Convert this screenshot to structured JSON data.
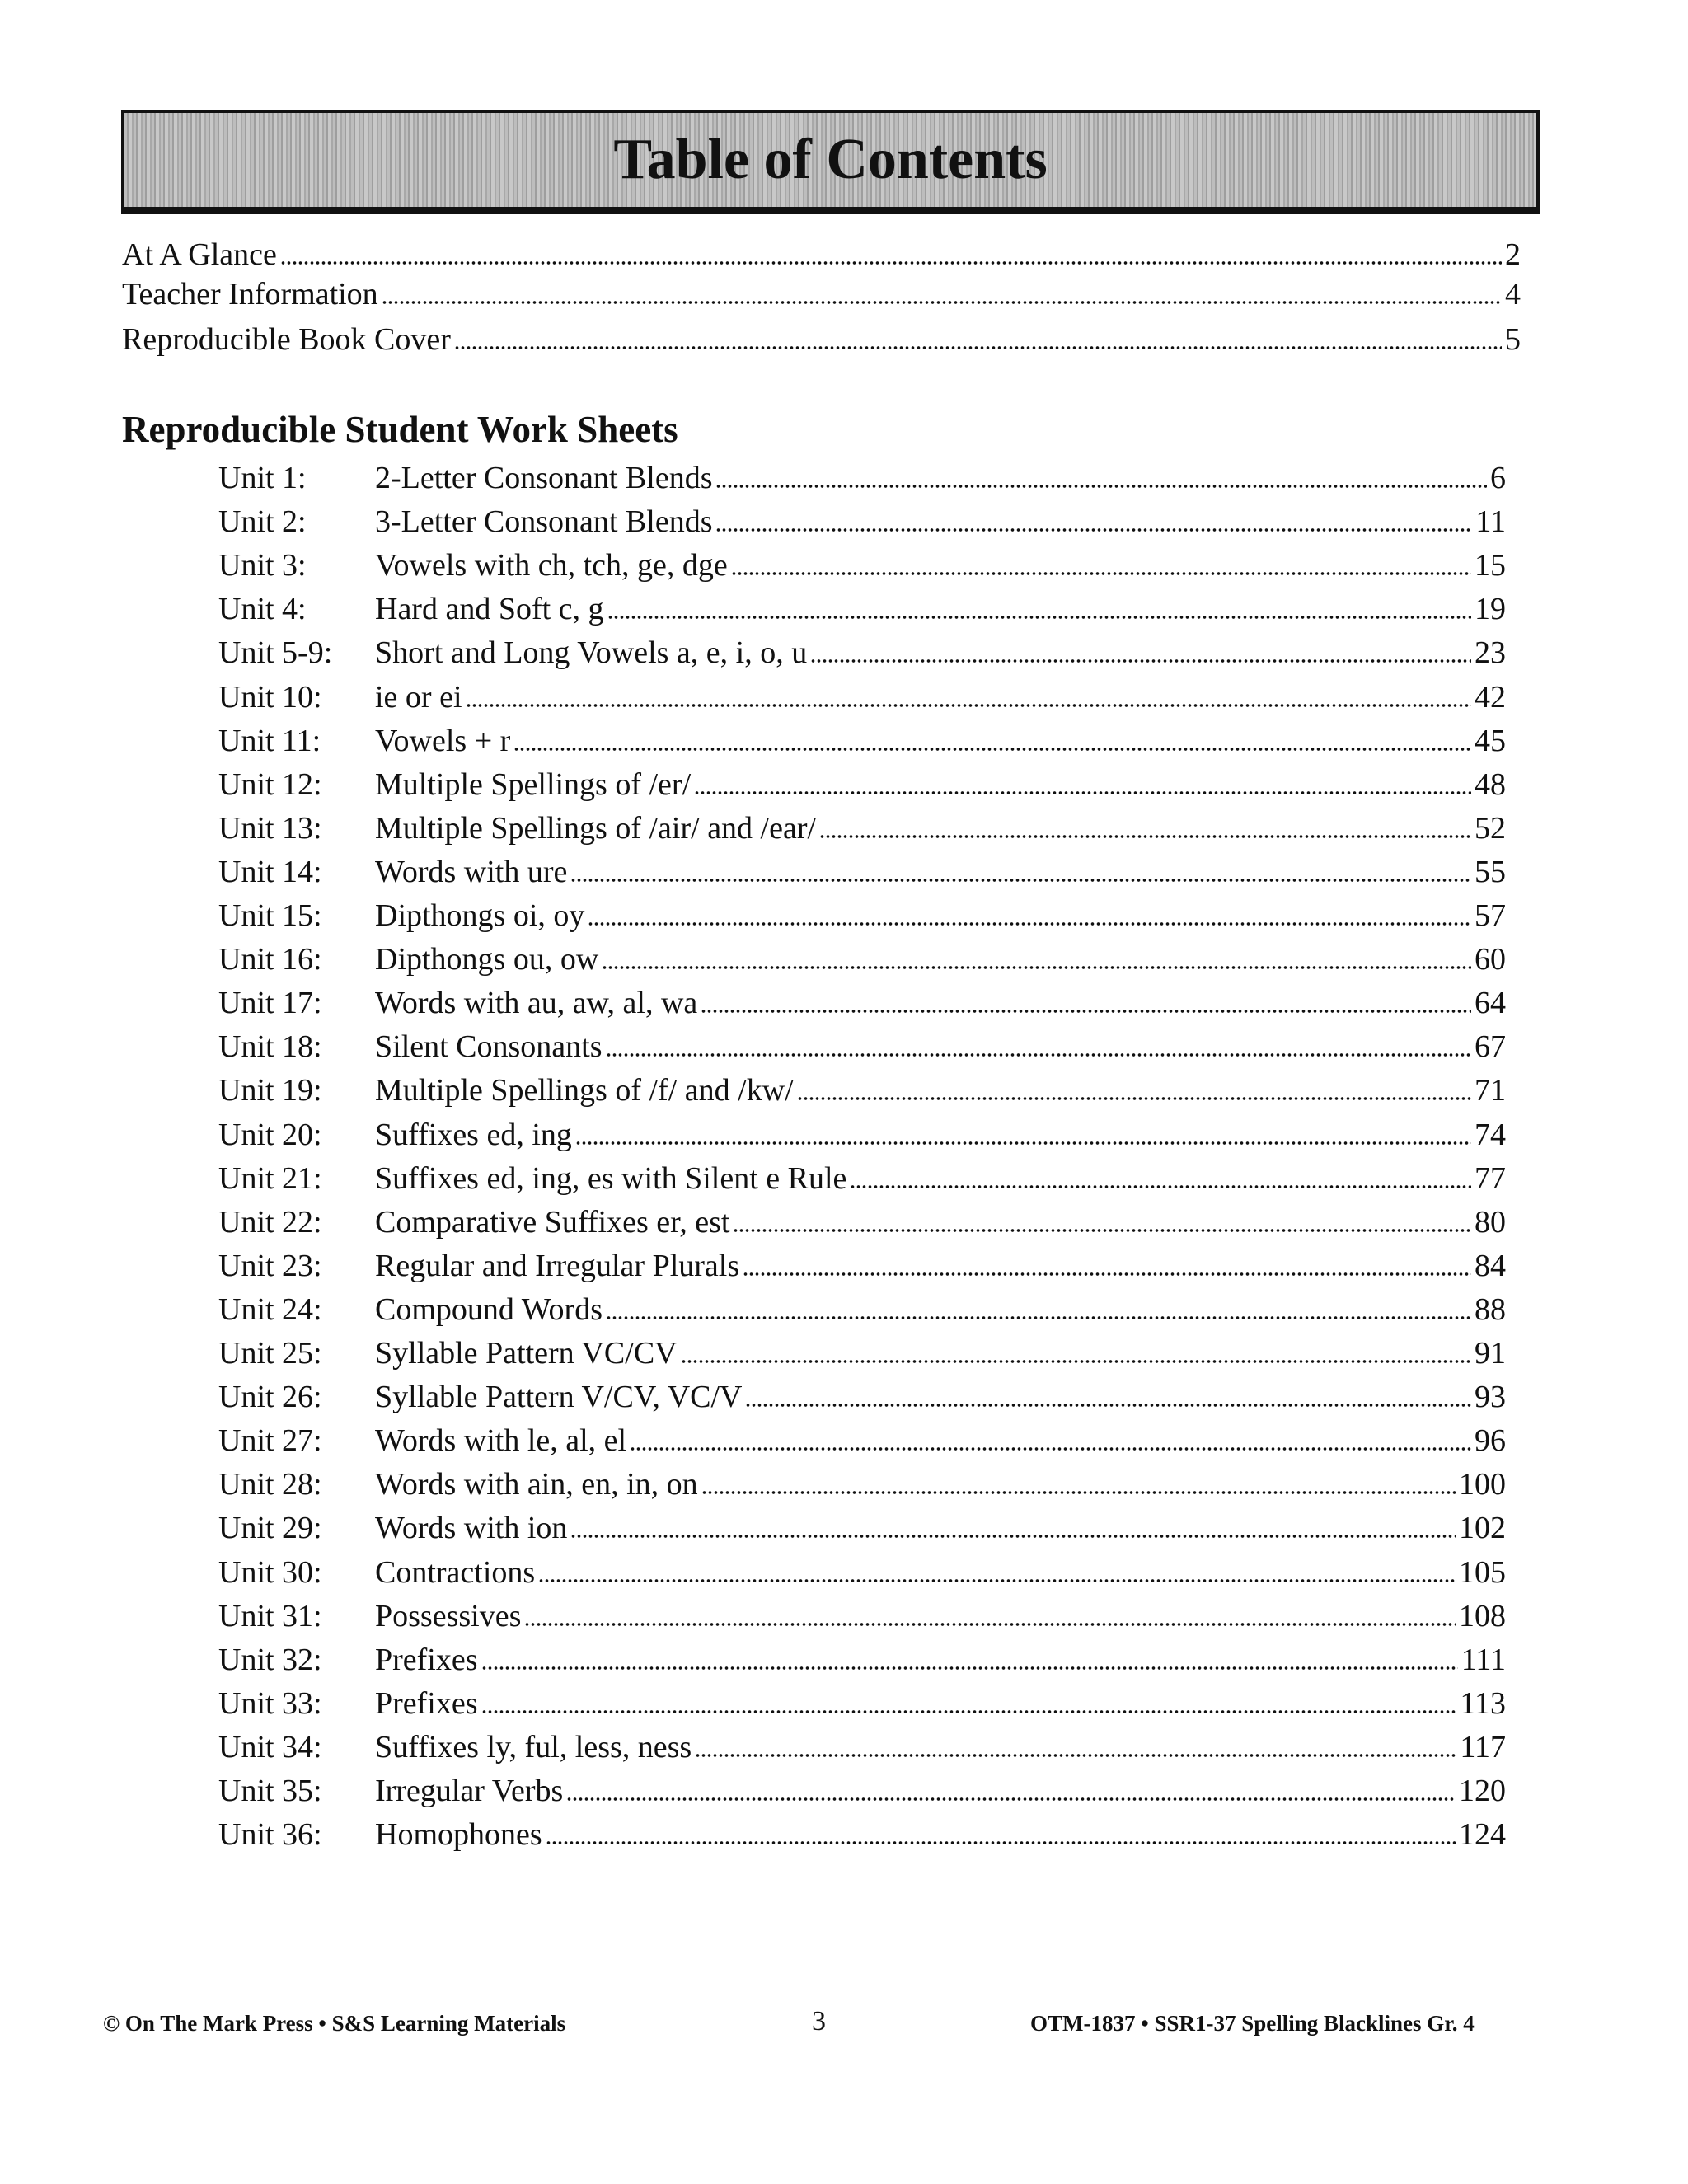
{
  "title": "Table of Contents",
  "front_matter": [
    {
      "label": "At A Glance",
      "page": "2"
    },
    {
      "label": "Teacher Information",
      "page": "4"
    },
    {
      "label": "Reproducible Book Cover",
      "page": "5"
    }
  ],
  "section_heading": "Reproducible Student Work Sheets",
  "units": [
    {
      "unit": "Unit 1:",
      "title": "2-Letter Consonant Blends",
      "page": "6"
    },
    {
      "unit": "Unit 2:",
      "title": "3-Letter Consonant Blends",
      "page": "11"
    },
    {
      "unit": "Unit 3:",
      "title": "Vowels with ch, tch, ge, dge",
      "page": "15"
    },
    {
      "unit": "Unit 4:",
      "title": "Hard and Soft c, g",
      "page": "19"
    },
    {
      "unit": "Unit 5-9:",
      "title": "Short and Long Vowels a, e, i, o, u",
      "page": "23"
    },
    {
      "unit": "Unit 10:",
      "title": "ie or ei",
      "page": "42"
    },
    {
      "unit": "Unit 11:",
      "title": "Vowels + r",
      "page": "45"
    },
    {
      "unit": "Unit 12:",
      "title": "Multiple Spellings of /er/",
      "page": "48"
    },
    {
      "unit": "Unit 13:",
      "title": "Multiple Spellings of /air/ and /ear/",
      "page": "52"
    },
    {
      "unit": "Unit 14:",
      "title": "Words with ure",
      "page": "55"
    },
    {
      "unit": "Unit 15:",
      "title": "Dipthongs oi, oy",
      "page": "57"
    },
    {
      "unit": "Unit 16:",
      "title": "Dipthongs ou, ow",
      "page": "60"
    },
    {
      "unit": "Unit 17:",
      "title": "Words with au, aw, al, wa",
      "page": "64"
    },
    {
      "unit": "Unit 18:",
      "title": "Silent Consonants",
      "page": "67"
    },
    {
      "unit": "Unit 19:",
      "title": "Multiple Spellings of /f/ and /kw/",
      "page": "71"
    },
    {
      "unit": "Unit 20:",
      "title": "Suffixes ed, ing",
      "page": "74"
    },
    {
      "unit": "Unit 21:",
      "title": "Suffixes ed, ing, es with Silent e Rule",
      "page": "77"
    },
    {
      "unit": "Unit 22:",
      "title": "Comparative Suffixes er, est",
      "page": "80"
    },
    {
      "unit": "Unit 23:",
      "title": "Regular and Irregular Plurals",
      "page": "84"
    },
    {
      "unit": "Unit 24:",
      "title": "Compound Words",
      "page": "88"
    },
    {
      "unit": "Unit 25:",
      "title": "Syllable Pattern VC/CV",
      "page": "91"
    },
    {
      "unit": "Unit 26:",
      "title": "Syllable Pattern V/CV, VC/V",
      "page": "93"
    },
    {
      "unit": "Unit 27:",
      "title": "Words with le, al, el",
      "page": "96"
    },
    {
      "unit": "Unit 28:",
      "title": "Words with ain, en, in, on",
      "page": "100"
    },
    {
      "unit": "Unit 29:",
      "title": "Words with ion",
      "page": "102"
    },
    {
      "unit": "Unit 30:",
      "title": "Contractions",
      "page": "105"
    },
    {
      "unit": "Unit 31:",
      "title": "Possessives",
      "page": "108"
    },
    {
      "unit": "Unit 32:",
      "title": "Prefixes",
      "page": "111"
    },
    {
      "unit": "Unit 33:",
      "title": "Prefixes",
      "page": "113"
    },
    {
      "unit": "Unit 34:",
      "title": "Suffixes ly, ful, less, ness",
      "page": "117"
    },
    {
      "unit": "Unit 35:",
      "title": "Irregular Verbs",
      "page": "120"
    },
    {
      "unit": "Unit 36:",
      "title": "Homophones",
      "page": "124"
    }
  ],
  "footer": {
    "left": "© On The Mark Press • S&S Learning Materials",
    "page_number": "3",
    "right": "OTM-1837 • SSR1-37 Spelling Blacklines Gr. 4"
  }
}
